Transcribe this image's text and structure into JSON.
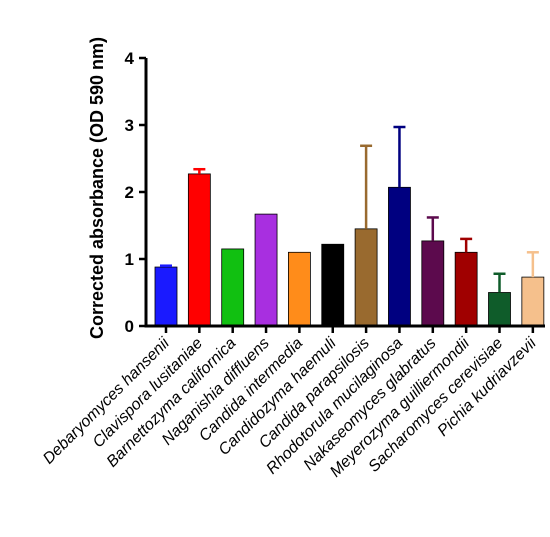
{
  "chart_data": {
    "type": "bar",
    "ylabel": "Corrected absorbance (OD 590 nm)",
    "xlabel": "",
    "ylim": [
      0,
      4
    ],
    "yticks": [
      "0",
      "1",
      "2",
      "3",
      "4"
    ],
    "grid": false,
    "legend": "none",
    "categories": [
      "Debaryomyces hansenii",
      "Clavispora lusitaniae",
      "Barnettozyma californica",
      "Naganishia diffluens",
      "Candida intermedia",
      "Candidozyma haemuli",
      "Candida parapsilosis",
      "Rhodotorula mucilaginosa",
      "Nakaseomyces glabratus",
      "Meyerozyma guilliermondii",
      "Sacharomyces cerevisiae",
      "Pichia kudriavzevii"
    ],
    "values": [
      0.88,
      2.27,
      1.15,
      1.67,
      1.1,
      1.22,
      1.45,
      2.07,
      1.27,
      1.1,
      0.5,
      0.73
    ],
    "errors": [
      0.02,
      0.07,
      0,
      0,
      0,
      0,
      1.24,
      0.9,
      0.35,
      0.2,
      0.28,
      0.37
    ],
    "colors": [
      "#1a1aff",
      "#ff0000",
      "#11c011",
      "#a82fe0",
      "#ff8c1a",
      "#000000",
      "#996a2f",
      "#000080",
      "#5c0a4d",
      "#a00000",
      "#0f5c2a",
      "#f5c08c"
    ]
  }
}
